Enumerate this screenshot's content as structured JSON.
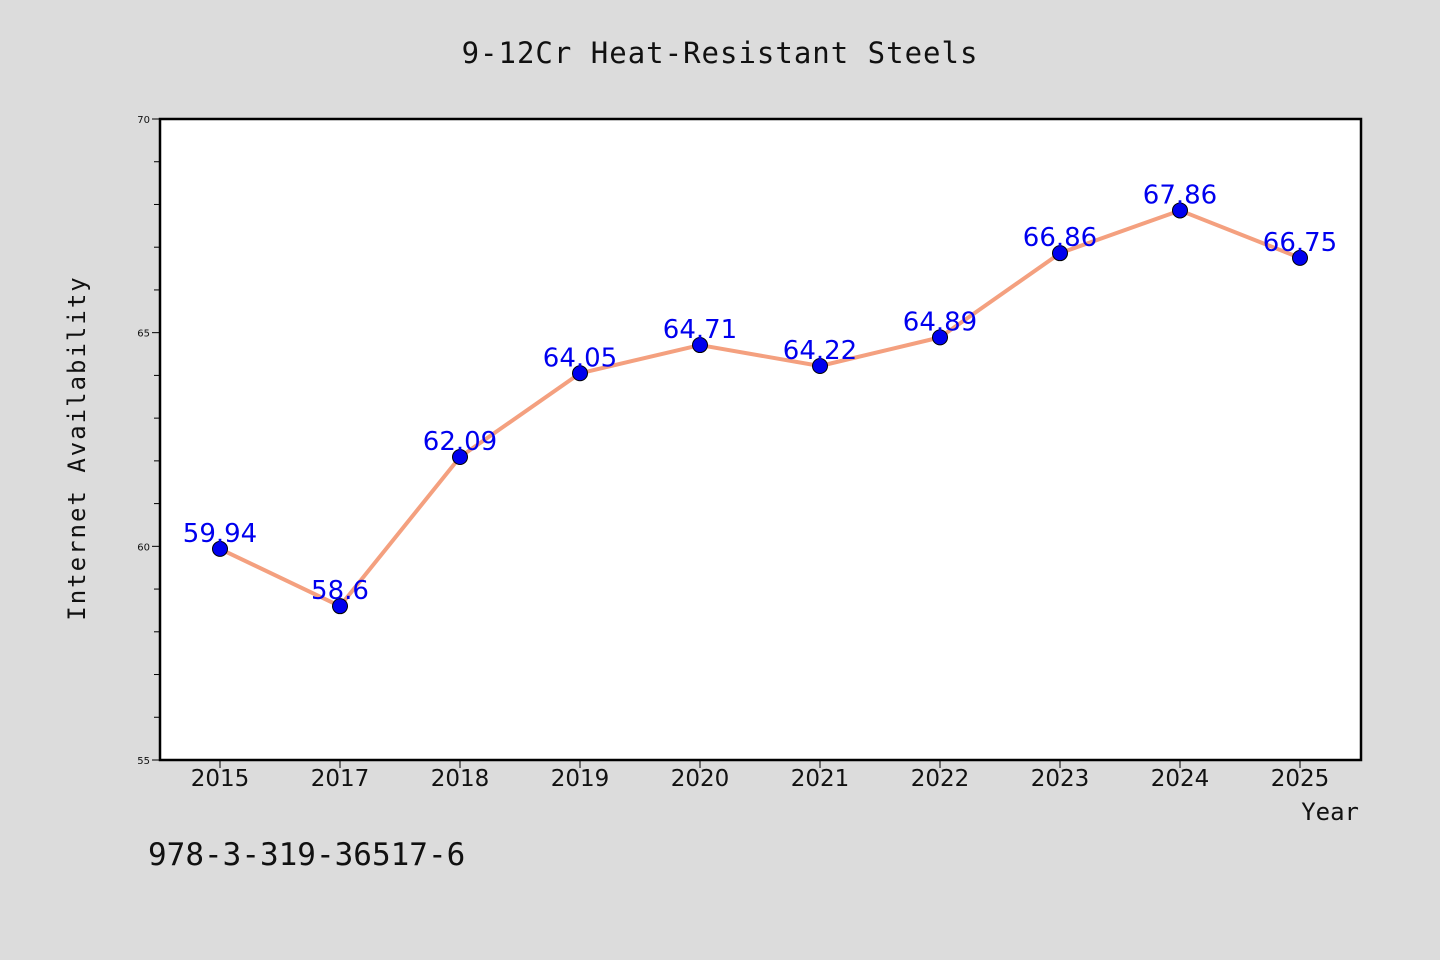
{
  "chart_data": {
    "type": "line",
    "title": "9-12Cr Heat-Resistant Steels",
    "xlabel": "Year",
    "ylabel": "Internet Availability",
    "categories": [
      "2015",
      "2017",
      "2018",
      "2019",
      "2020",
      "2021",
      "2022",
      "2023",
      "2024",
      "2025"
    ],
    "series": [
      {
        "values": [
          59.94,
          58.6,
          62.09,
          64.05,
          64.71,
          64.22,
          64.89,
          66.86,
          67.86,
          66.75
        ],
        "labels": [
          "59.94",
          "58.6",
          "62.09",
          "64.05",
          "64.71",
          "64.22",
          "64.89",
          "66.86",
          "67.86",
          "66.75"
        ]
      }
    ],
    "ylim": [
      55,
      70
    ],
    "yticks": [
      "55",
      "60",
      "65",
      "70"
    ],
    "grid": false,
    "legend": "none",
    "colors": {
      "line": "#f4a07f",
      "marker": "#0000ee",
      "data_label": "#0000ee",
      "plot_background": "#ffffff",
      "figure_background": "#dcdcdc"
    }
  },
  "footer": {
    "text": "978-3-319-36517-6"
  }
}
